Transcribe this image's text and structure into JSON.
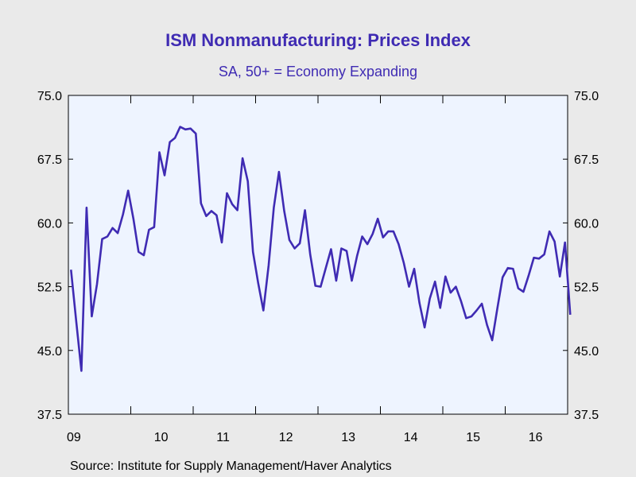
{
  "chart_data": {
    "type": "line",
    "title": "ISM Nonmanufacturing: Prices Index",
    "subtitle": "SA, 50+ = Economy Expanding",
    "source": "Source:  Institute for Supply Management/Haver Analytics",
    "ylim": [
      37.5,
      75.0
    ],
    "y_ticks": [
      "75.0",
      "67.5",
      "60.0",
      "52.5",
      "45.0",
      "37.5"
    ],
    "x_ticks": [
      "09",
      "10",
      "11",
      "12",
      "13",
      "14",
      "15",
      "16"
    ],
    "x_range": [
      "2009-01",
      "2016-12"
    ],
    "series_color": "#3f2bb3",
    "plot_background": "#eef4ff",
    "grid": false,
    "series": [
      {
        "start": "2009-01",
        "frequency": "monthly",
        "values": [
          54.5,
          48.5,
          42.6,
          61.8,
          49.0,
          52.8,
          58.1,
          58.4,
          59.4,
          58.8,
          61.0,
          63.8,
          60.5,
          56.6,
          56.2,
          59.2,
          59.5,
          68.3,
          65.6,
          69.5,
          70.0,
          71.3,
          71.0,
          71.1,
          70.5,
          62.3,
          60.8,
          61.4,
          60.9,
          57.7,
          63.5,
          62.2,
          61.5,
          67.6,
          64.9,
          56.6,
          52.9,
          49.7,
          55.0,
          61.8,
          66.0,
          61.4,
          58.0,
          57.0,
          57.6,
          61.5,
          56.3,
          52.6,
          52.5,
          54.7,
          56.9,
          53.2,
          57.0,
          56.7,
          53.2,
          56.1,
          58.4,
          57.5,
          58.7,
          60.5,
          58.3,
          59.0,
          59.0,
          57.5,
          55.3,
          52.5,
          54.6,
          50.6,
          47.7,
          51.1,
          53.1,
          50.0,
          53.7,
          51.8,
          52.5,
          50.8,
          48.8,
          49.0,
          49.7,
          50.5,
          48.0,
          46.2,
          50.0,
          53.6,
          54.7,
          54.6,
          52.3,
          51.9,
          53.8,
          55.9,
          55.8,
          56.3,
          59.0,
          57.8,
          53.7,
          57.7,
          49.2
        ]
      }
    ]
  }
}
